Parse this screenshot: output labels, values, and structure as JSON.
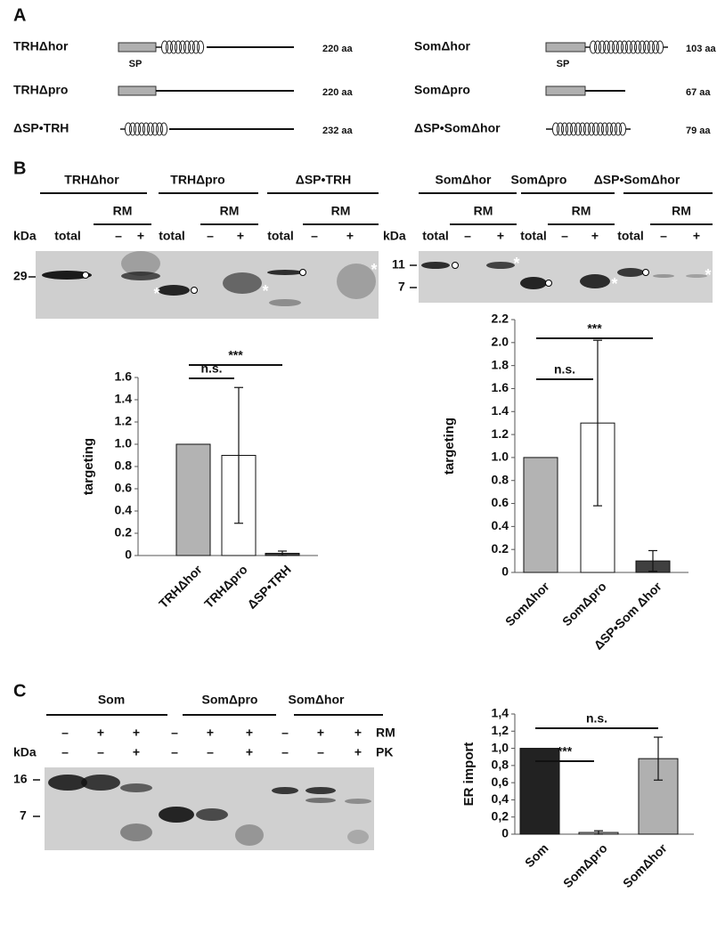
{
  "panel_a": {
    "label": "A",
    "sp": "SP",
    "constructs": [
      {
        "name": "TRHΔhor",
        "length": "220 aa"
      },
      {
        "name": "TRHΔpro",
        "length": "220 aa"
      },
      {
        "name": "ΔSP•TRH",
        "length": "232 aa"
      },
      {
        "name": "SomΔhor",
        "length": "103 aa"
      },
      {
        "name": "SomΔpro",
        "length": "67 aa"
      },
      {
        "name": "ΔSP•SomΔhor",
        "length": "79 aa"
      }
    ]
  },
  "panel_b": {
    "label": "B",
    "rm": "RM",
    "kda": "kDa",
    "lanes": [
      "total",
      "–",
      "+"
    ],
    "star": "*",
    "left_groups": [
      "TRHΔhor",
      "TRHΔpro",
      "ΔSP•TRH"
    ],
    "left_markers": [
      "29"
    ],
    "right_groups": [
      "SomΔhor",
      "SomΔpro",
      "ΔSP•SomΔhor"
    ],
    "right_markers": [
      "11",
      "7"
    ]
  },
  "chart_data": [
    {
      "type": "bar",
      "y_label": "targeting",
      "categories": [
        "TRHΔhor",
        "TRHΔpro",
        "ΔSP•TRH"
      ],
      "values": [
        1.0,
        0.9,
        0.02
      ],
      "errors": [
        null,
        0.61,
        0.02
      ],
      "colors": [
        "#b3b3b3",
        "#ffffff",
        "#404040"
      ],
      "ylim": [
        0,
        1.6
      ],
      "yticks": [
        0,
        0.2,
        0.4,
        0.6,
        0.8,
        {
          "value": 1,
          "label": "1.0"
        },
        1.2,
        1.4,
        1.6
      ],
      "annotations": [
        "n.s.",
        "***"
      ]
    },
    {
      "type": "bar",
      "y_label": "targeting",
      "categories": [
        "SomΔhor",
        "SomΔpro",
        "ΔSP•Som Δhor"
      ],
      "values": [
        1.0,
        1.3,
        0.1
      ],
      "errors": [
        null,
        0.72,
        0.09
      ],
      "colors": [
        "#b3b3b3",
        "#ffffff",
        "#404040"
      ],
      "ylim": [
        0,
        2.2
      ],
      "yticks": [
        0,
        0.2,
        0.4,
        0.6,
        0.8,
        {
          "value": 1,
          "label": "1.0"
        },
        1.2,
        1.4,
        1.6,
        1.8,
        {
          "value": 2,
          "label": "2.0"
        },
        2.2
      ],
      "annotations": [
        "n.s.",
        "***"
      ]
    },
    {
      "type": "bar",
      "y_label": "ER import",
      "categories": [
        "Som",
        "SomΔpro",
        "SomΔhor"
      ],
      "values": [
        1.0,
        0.02,
        0.88
      ],
      "errors": [
        null,
        0.02,
        0.25
      ],
      "colors": [
        "#222222",
        "#c8c8c8",
        "#b0b0b0"
      ],
      "ylim": [
        0,
        1.4
      ],
      "yticks": [
        0,
        {
          "value": 0.2,
          "label": "0,2"
        },
        {
          "value": 0.4,
          "label": "0,4"
        },
        {
          "value": 0.6,
          "label": "0,6"
        },
        {
          "value": 0.8,
          "label": "0,8"
        },
        {
          "value": 1,
          "label": "1,0"
        },
        {
          "value": 1.2,
          "label": "1,2"
        },
        {
          "value": 1.4,
          "label": "1,4"
        }
      ],
      "annotations": [
        "***",
        "n.s."
      ]
    }
  ],
  "panel_c": {
    "label": "C",
    "groups": [
      "Som",
      "SomΔpro",
      "SomΔhor"
    ],
    "rm": "RM",
    "pk": "PK",
    "kda": "kDa",
    "rm_signs": [
      "–",
      "+",
      "+",
      "–",
      "+",
      "+",
      "–",
      "+",
      "+"
    ],
    "pk_signs": [
      "–",
      "–",
      "+",
      "–",
      "–",
      "+",
      "–",
      "–",
      "+"
    ],
    "markers": [
      "16",
      "7"
    ]
  }
}
